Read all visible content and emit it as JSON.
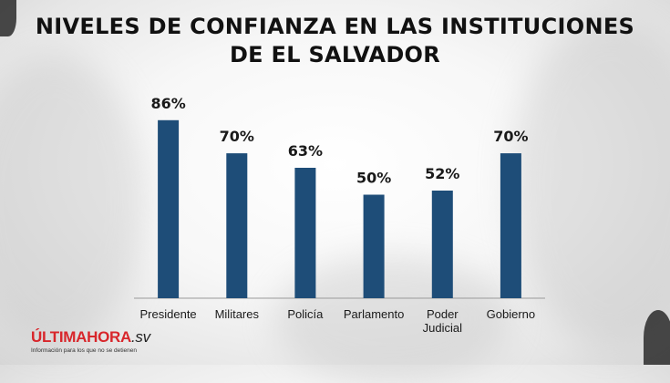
{
  "title_line1": "NIVELES DE CONFIANZA EN LAS INSTITUCIONES",
  "title_line2": "DE EL SALVADOR",
  "logo": {
    "brand_main": "ÚLTIMAHORA",
    "brand_suffix": ".sv",
    "tagline": "Información para los que no se detienen",
    "color": "#d8262b"
  },
  "colors": {
    "bar": "#1e4d78",
    "axis": "#9a9a9a"
  },
  "chart_data": {
    "type": "bar",
    "title": "NIVELES DE CONFIANZA EN LAS INSTITUCIONES DE EL SALVADOR",
    "categories": [
      [
        "Presidente"
      ],
      [
        "Militares"
      ],
      [
        "Policía"
      ],
      [
        "Parlamento"
      ],
      [
        "Poder",
        "Judicial"
      ],
      [
        "Gobierno"
      ]
    ],
    "values": [
      86,
      70,
      63,
      50,
      52,
      70
    ],
    "value_labels": [
      "86%",
      "70%",
      "63%",
      "50%",
      "52%",
      "70%"
    ],
    "unit": "%",
    "ylim": [
      0,
      100
    ],
    "grid": false,
    "legend": "none"
  }
}
